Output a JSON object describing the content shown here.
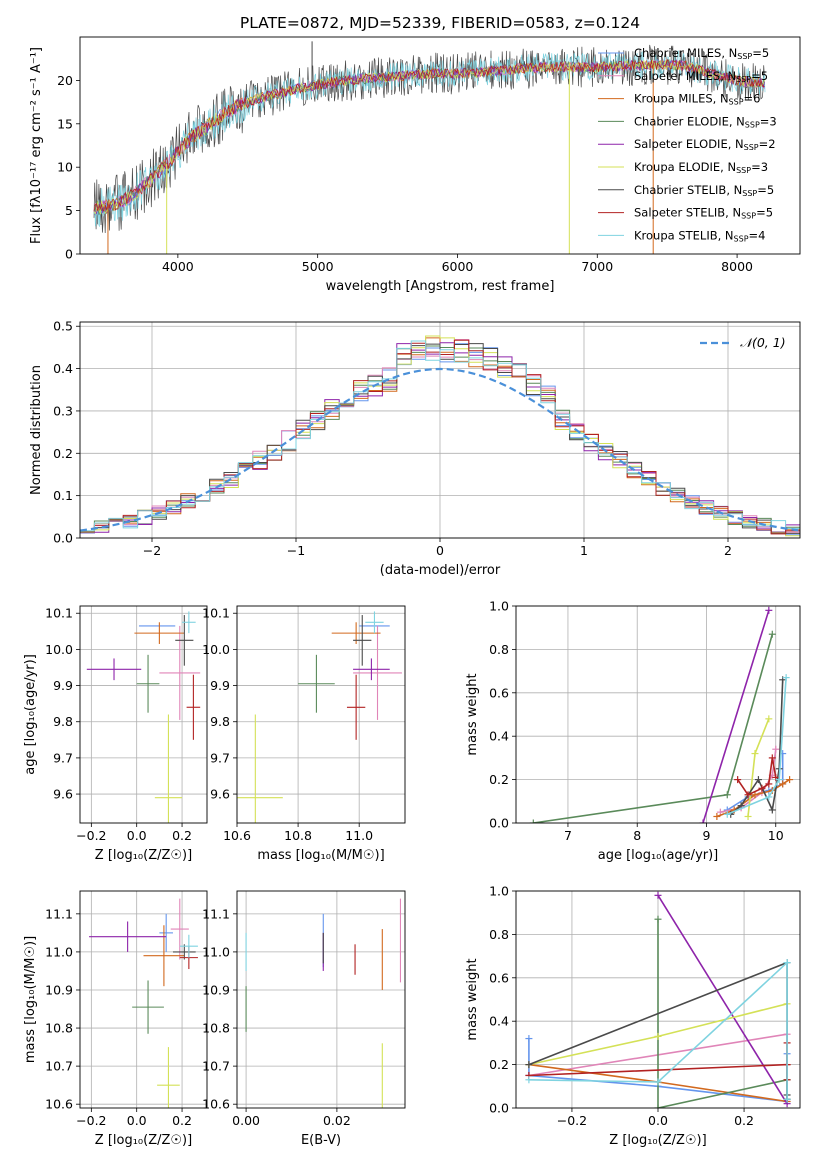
{
  "figure": {
    "title": "PLATE=0872, MJD=52339, FIBERID=0583, z=0.124"
  },
  "colors": [
    "#6495ed",
    "#e085b8",
    "#d2691e",
    "#5a8a5a",
    "#8e24aa",
    "#d4e157",
    "#4a4a4a",
    "#b22222",
    "#7fd3e0"
  ],
  "chart_data": [
    {
      "id": "spectrum",
      "type": "line",
      "title": "PLATE=0872, MJD=52339, FIBERID=0583, z=0.124",
      "xlabel": "wavelength [Angstrom, rest frame]",
      "ylabel": "Flux [fλ10⁻¹⁷ erg cm⁻² s⁻¹ A⁻¹]",
      "xlim": [
        3300,
        8450
      ],
      "ylim": [
        0,
        25
      ],
      "xticks": [
        4000,
        5000,
        6000,
        7000,
        8000
      ],
      "yticks": [
        0,
        5,
        10,
        15,
        20
      ],
      "legend_position": "top-right",
      "continuum": {
        "x": [
          3400,
          3500,
          3600,
          3700,
          3800,
          3900,
          4000,
          4100,
          4200,
          4300,
          4400,
          4500,
          4600,
          4800,
          5000,
          5200,
          5400,
          5600,
          5800,
          6000,
          6200,
          6400,
          6600,
          6800,
          7000,
          7200,
          7400,
          7600,
          7800,
          8000,
          8200
        ],
        "y": [
          5.2,
          5.5,
          6.0,
          7.0,
          8.5,
          10.0,
          11.8,
          13.5,
          14.5,
          15.8,
          16.8,
          17.5,
          18.0,
          18.8,
          19.5,
          20.0,
          20.3,
          20.5,
          20.8,
          20.8,
          21.0,
          21.3,
          21.5,
          21.6,
          21.5,
          21.7,
          21.8,
          21.8,
          20.8,
          20.0,
          19.6
        ]
      },
      "line_features": [
        {
          "x": 3500,
          "ymin": 0.0
        },
        {
          "x": 3920,
          "ymin": 0.0
        },
        {
          "x": 4960,
          "ymin": 24.5
        },
        {
          "x": 6800,
          "ymin": 0.0
        },
        {
          "x": 7400,
          "ymin": 0.0
        }
      ],
      "series": [
        {
          "name": "Chabrier MILES, N",
          "sub": "SSP",
          "suffix": "=5"
        },
        {
          "name": "Salpeter MILES, N",
          "sub": "SSP",
          "suffix": "=5"
        },
        {
          "name": "Kroupa MILES, N",
          "sub": "SSP",
          "suffix": "=6"
        },
        {
          "name": "Chabrier ELODIE, N",
          "sub": "SSP",
          "suffix": "=3"
        },
        {
          "name": "Salpeter ELODIE, N",
          "sub": "SSP",
          "suffix": "=2"
        },
        {
          "name": "Kroupa ELODIE, N",
          "sub": "SSP",
          "suffix": "=3"
        },
        {
          "name": "Chabrier STELIB, N",
          "sub": "SSP",
          "suffix": "=5"
        },
        {
          "name": "Salpeter STELIB, N",
          "sub": "SSP",
          "suffix": "=5"
        },
        {
          "name": "Kroupa STELIB, N",
          "sub": "SSP",
          "suffix": "=4"
        }
      ]
    },
    {
      "id": "residuals",
      "type": "line",
      "xlabel": "(data-model)/error",
      "ylabel": "Normed distribution",
      "xlim": [
        -2.5,
        2.5
      ],
      "ylim": [
        0,
        0.51
      ],
      "xticks": [
        -2,
        -1,
        0,
        1,
        2
      ],
      "yticks": [
        0.0,
        0.1,
        0.2,
        0.3,
        0.4,
        0.5
      ],
      "grid": true,
      "legend_position": "top-right",
      "gaussian_label": "𝒩(0, 1)",
      "bins": {
        "start": -2.5,
        "width": 0.1,
        "count": 50
      },
      "histogram_spread": 0.025
    },
    {
      "id": "age-vs-Z",
      "type": "scatter",
      "xlabel": "Z [log₁₀(Z/Z☉)]",
      "ylabel": "age  [log₁₀(age/yr)]",
      "xlim": [
        -0.25,
        0.31
      ],
      "ylim": [
        9.52,
        10.12
      ],
      "xticks": [
        -0.2,
        0.0,
        0.2
      ],
      "yticks": [
        9.6,
        9.7,
        9.8,
        9.9,
        10.0,
        10.1
      ],
      "grid": true,
      "points": [
        {
          "x": 0.09,
          "y": 10.065,
          "xerr": 0.08,
          "yerr": 0.0
        },
        {
          "x": 0.19,
          "y": 9.935,
          "xerr": 0.09,
          "yerr": 0.13
        },
        {
          "x": 0.1,
          "y": 10.045,
          "xerr": 0.11,
          "yerr": 0.03
        },
        {
          "x": 0.05,
          "y": 9.905,
          "xerr": 0.05,
          "yerr": 0.08
        },
        {
          "x": -0.1,
          "y": 9.945,
          "xerr": 0.12,
          "yerr": 0.03
        },
        {
          "x": 0.14,
          "y": 9.59,
          "xerr": 0.06,
          "yerr": 0.23
        },
        {
          "x": 0.21,
          "y": 10.025,
          "xerr": 0.04,
          "yerr": 0.07
        },
        {
          "x": 0.25,
          "y": 9.84,
          "xerr": 0.03,
          "yerr": 0.09
        },
        {
          "x": 0.23,
          "y": 10.075,
          "xerr": 0.03,
          "yerr": 0.03
        }
      ]
    },
    {
      "id": "age-vs-mass",
      "type": "scatter",
      "xlabel": "mass [log₁₀(M/M☉)]",
      "ylabel": "",
      "xlim": [
        10.6,
        11.15
      ],
      "ylim": [
        9.52,
        10.12
      ],
      "xticks": [
        10.6,
        10.8,
        11.0
      ],
      "yticks": [
        9.6,
        9.7,
        9.8,
        9.9,
        10.0,
        10.1
      ],
      "grid": true,
      "points": [
        {
          "x": 11.05,
          "y": 10.065,
          "xerr": 0.05,
          "yerr": 0.0
        },
        {
          "x": 11.06,
          "y": 9.935,
          "xerr": 0.08,
          "yerr": 0.13
        },
        {
          "x": 10.99,
          "y": 10.045,
          "xerr": 0.08,
          "yerr": 0.03
        },
        {
          "x": 10.86,
          "y": 9.905,
          "xerr": 0.06,
          "yerr": 0.08
        },
        {
          "x": 11.04,
          "y": 9.945,
          "xerr": 0.06,
          "yerr": 0.03
        },
        {
          "x": 10.66,
          "y": 9.59,
          "xerr": 0.09,
          "yerr": 0.23
        },
        {
          "x": 11.01,
          "y": 10.025,
          "xerr": 0.03,
          "yerr": 0.07
        },
        {
          "x": 10.99,
          "y": 9.84,
          "xerr": 0.03,
          "yerr": 0.09
        },
        {
          "x": 11.05,
          "y": 10.075,
          "xerr": 0.03,
          "yerr": 0.03
        }
      ]
    },
    {
      "id": "weight-vs-age",
      "type": "line",
      "xlabel": "age  [log₁₀(age/yr)]",
      "ylabel": "mass weight",
      "xlim": [
        6.25,
        10.35
      ],
      "ylim": [
        0,
        1.0
      ],
      "xticks": [
        7,
        8,
        9,
        10
      ],
      "yticks": [
        0.0,
        0.2,
        0.4,
        0.6,
        0.8,
        1.0
      ],
      "grid": true,
      "series": [
        {
          "x": [
            9.3,
            9.6,
            9.9,
            10.1,
            10.1
          ],
          "y": [
            0.06,
            0.12,
            0.15,
            0.18,
            0.32
          ]
        },
        {
          "x": [
            9.2,
            9.5,
            9.8,
            9.95,
            10.0
          ],
          "y": [
            0.05,
            0.07,
            0.14,
            0.22,
            0.34
          ]
        },
        {
          "x": [
            9.15,
            9.4,
            9.7,
            9.95,
            10.1,
            10.2
          ],
          "y": [
            0.03,
            0.06,
            0.13,
            0.15,
            0.18,
            0.2
          ]
        },
        {
          "x": [
            6.5,
            9.3,
            9.95
          ],
          "y": [
            0.0,
            0.13,
            0.87
          ]
        },
        {
          "x": [
            8.95,
            9.9
          ],
          "y": [
            0.0,
            0.98
          ]
        },
        {
          "x": [
            9.6,
            9.7,
            9.9
          ],
          "y": [
            0.03,
            0.32,
            0.48
          ]
        },
        {
          "x": [
            9.35,
            9.5,
            9.75,
            9.95,
            10.05,
            10.1
          ],
          "y": [
            0.04,
            0.08,
            0.2,
            0.06,
            0.25,
            0.66
          ]
        },
        {
          "x": [
            9.45,
            9.6,
            9.8,
            9.9,
            9.95,
            10.0
          ],
          "y": [
            0.2,
            0.13,
            0.16,
            0.18,
            0.3,
            0.21
          ]
        },
        {
          "x": [
            9.3,
            9.9,
            10.05,
            10.15
          ],
          "y": [
            0.04,
            0.12,
            0.2,
            0.67
          ]
        }
      ]
    },
    {
      "id": "mass-vs-Z",
      "type": "scatter",
      "xlabel": "Z [log₁₀(Z/Z☉)]",
      "ylabel": "mass [log₁₀(M/M☉)]",
      "xlim": [
        -0.25,
        0.31
      ],
      "ylim": [
        10.59,
        11.16
      ],
      "xticks": [
        -0.2,
        0.0,
        0.2
      ],
      "yticks": [
        10.6,
        10.7,
        10.8,
        10.9,
        11.0,
        11.1
      ],
      "grid": true,
      "points": [
        {
          "x": 0.13,
          "y": 11.05,
          "xerr": 0.03,
          "yerr": 0.05
        },
        {
          "x": 0.19,
          "y": 11.06,
          "xerr": 0.04,
          "yerr": 0.08
        },
        {
          "x": 0.12,
          "y": 10.99,
          "xerr": 0.09,
          "yerr": 0.08
        },
        {
          "x": 0.05,
          "y": 10.855,
          "xerr": 0.07,
          "yerr": 0.07
        },
        {
          "x": -0.04,
          "y": 11.04,
          "xerr": 0.17,
          "yerr": 0.04
        },
        {
          "x": 0.14,
          "y": 10.65,
          "xerr": 0.05,
          "yerr": 0.1
        },
        {
          "x": 0.21,
          "y": 11.0,
          "xerr": 0.05,
          "yerr": 0.02
        },
        {
          "x": 0.23,
          "y": 10.985,
          "xerr": 0.04,
          "yerr": 0.03
        },
        {
          "x": 0.23,
          "y": 11.015,
          "xerr": 0.04,
          "yerr": 0.03
        }
      ]
    },
    {
      "id": "mass-vs-EBV",
      "type": "scatter",
      "xlabel": "E(B-V)",
      "ylabel": "",
      "xlim": [
        -0.002,
        0.035
      ],
      "ylim": [
        10.59,
        11.16
      ],
      "xticks": [
        0.0,
        0.02
      ],
      "yticks": [
        10.6,
        10.7,
        10.8,
        10.9,
        11.0,
        11.1
      ],
      "grid": true,
      "points": [
        {
          "x": 0.017,
          "y": 11.03,
          "xerr": 0.0,
          "yerr": 0.07
        },
        {
          "x": 0.034,
          "y": 11.03,
          "xerr": 0.0,
          "yerr": 0.11
        },
        {
          "x": 0.03,
          "y": 10.98,
          "xerr": 0.0,
          "yerr": 0.08
        },
        {
          "x": 0.0,
          "y": 10.85,
          "xerr": 0.0,
          "yerr": 0.06
        },
        {
          "x": 0.017,
          "y": 11.0,
          "xerr": 0.0,
          "yerr": 0.05
        },
        {
          "x": 0.03,
          "y": 10.66,
          "xerr": 0.0,
          "yerr": 0.1
        },
        {
          "x": 0.017,
          "y": 11.01,
          "xerr": 0.0,
          "yerr": 0.04
        },
        {
          "x": 0.024,
          "y": 10.98,
          "xerr": 0.0,
          "yerr": 0.04
        },
        {
          "x": 0.0,
          "y": 11.0,
          "xerr": 0.0,
          "yerr": 0.05
        }
      ]
    },
    {
      "id": "weight-vs-Z",
      "type": "line",
      "xlabel": "Z [log₁₀(Z/Z☉)]",
      "ylabel": "mass weight",
      "xlim": [
        -0.33,
        0.33
      ],
      "ylim": [
        0,
        1.0
      ],
      "xticks": [
        -0.2,
        0.0,
        0.2
      ],
      "yticks": [
        0.0,
        0.2,
        0.4,
        0.6,
        0.8,
        1.0
      ],
      "grid": true,
      "series": [
        {
          "x": [
            -0.3,
            -0.3,
            0.0,
            0.3,
            0.3
          ],
          "y": [
            0.32,
            0.15,
            0.1,
            0.03,
            0.25
          ]
        },
        {
          "x": [
            -0.3,
            0.3,
            0.3
          ],
          "y": [
            0.15,
            0.34,
            0.2
          ]
        },
        {
          "x": [
            -0.3,
            0.0,
            0.3,
            0.3
          ],
          "y": [
            0.2,
            0.12,
            0.03,
            0.2
          ]
        },
        {
          "x": [
            0.0,
            0.0,
            0.3,
            0.3
          ],
          "y": [
            0.87,
            0.0,
            0.13,
            0.04
          ]
        },
        {
          "x": [
            0.0,
            0.3
          ],
          "y": [
            0.98,
            0.02
          ]
        },
        {
          "x": [
            -0.3,
            0.0,
            0.3
          ],
          "y": [
            0.2,
            0.33,
            0.48
          ]
        },
        {
          "x": [
            -0.3,
            0.3,
            0.3,
            0.3
          ],
          "y": [
            0.2,
            0.67,
            0.04,
            0.06
          ]
        },
        {
          "x": [
            -0.3,
            0.3,
            0.3,
            0.3
          ],
          "y": [
            0.15,
            0.2,
            0.13,
            0.3
          ]
        },
        {
          "x": [
            -0.3,
            0.0,
            0.3,
            0.3
          ],
          "y": [
            0.13,
            0.12,
            0.67,
            0.04
          ]
        }
      ]
    }
  ]
}
